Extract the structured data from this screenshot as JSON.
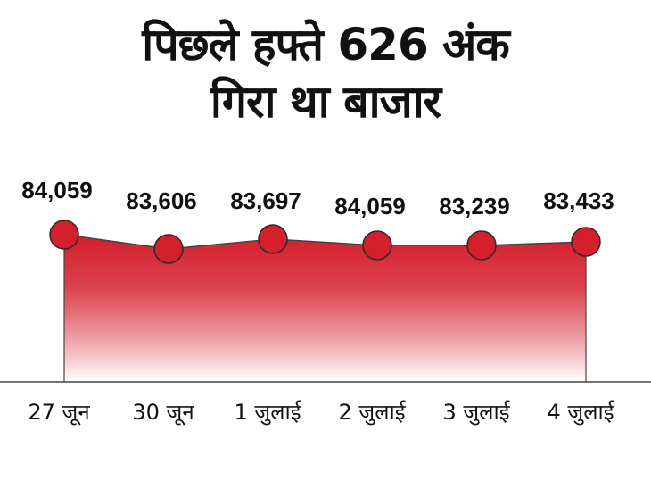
{
  "title_lines": [
    "पिछले हफ्ते 626 अंक",
    "गिरा था बाजार"
  ],
  "colors": {
    "fill_top": "#d41f2c",
    "fill_bottom": "#ffffff",
    "line": "#444444",
    "point": "#d41f2c",
    "point_stroke": "#2a2a2a",
    "axis": "#444444"
  },
  "chart_data": {
    "type": "area",
    "title": "पिछले हफ्ते 626 अंक गिरा था बाजार",
    "categories": [
      "27 जून",
      "30 जून",
      "1 जुलाई",
      "2 जुलाई",
      "3 जुलाई",
      "4 जुलाई"
    ],
    "values": [
      84059,
      83606,
      83697,
      84059,
      83239,
      83433
    ],
    "data_labels": [
      "84,059",
      "83,606",
      "83,697",
      "84,059",
      "83,239",
      "83,433"
    ],
    "xlabel": "",
    "ylabel": "",
    "grid": false,
    "legend": "none"
  }
}
